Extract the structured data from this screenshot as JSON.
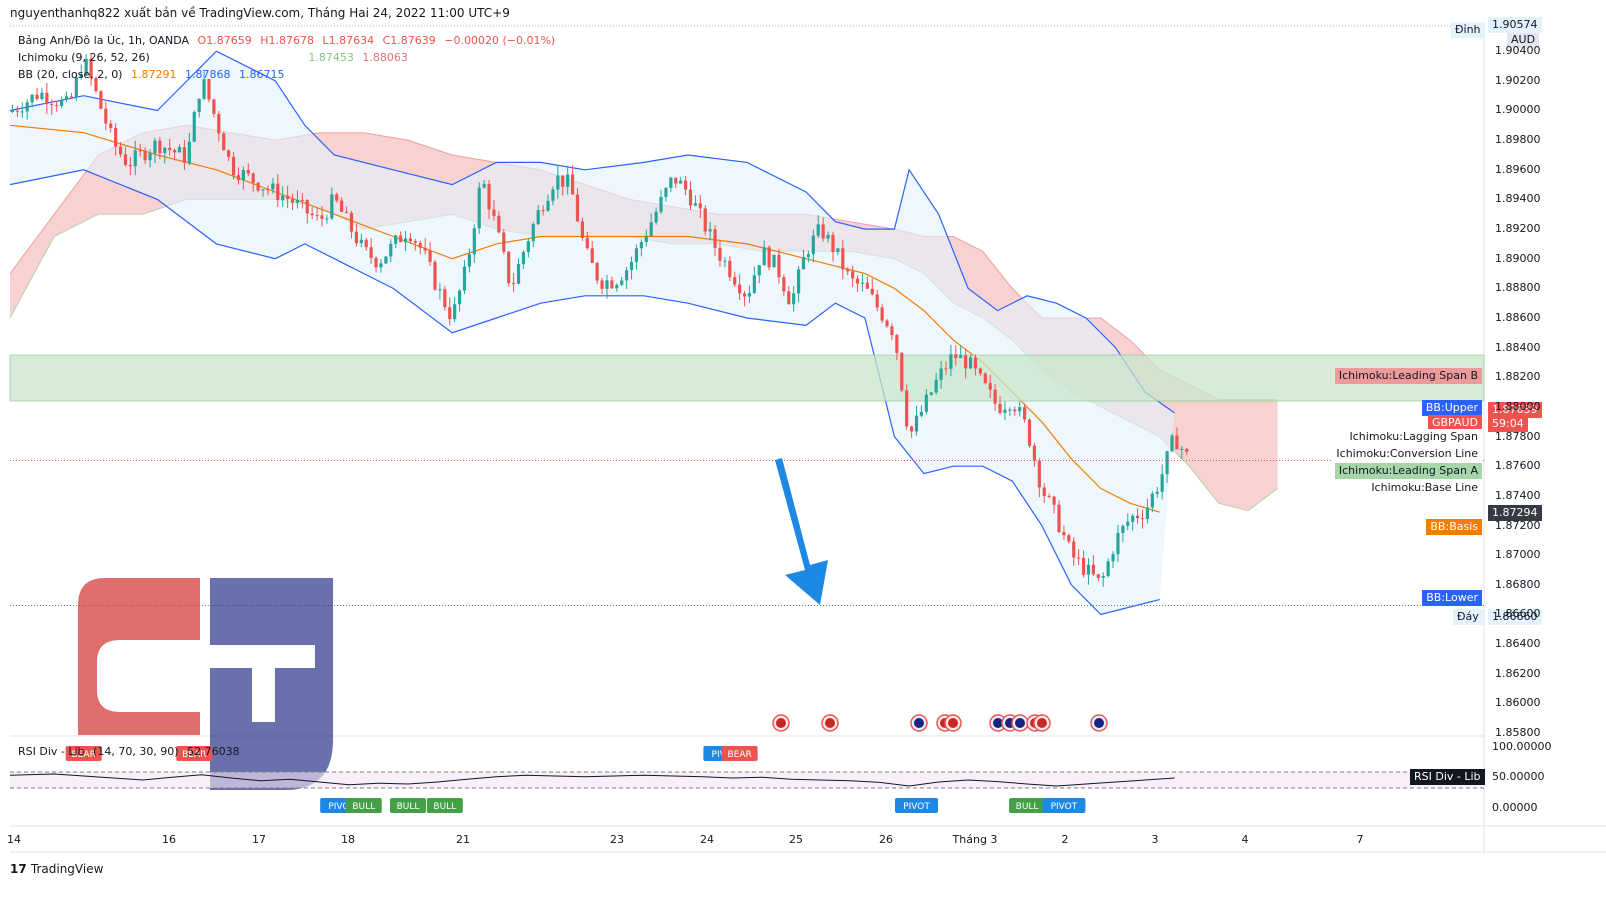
{
  "header": {
    "attribution": "nguyenthanhq822 xuất bản về TradingView.com, Tháng Hai 24, 2022 11:00 UTC+9"
  },
  "legend": {
    "symbol": "Bảng Anh/Đô la Úc, 1h, OANDA",
    "o": "O1.87659",
    "h": "H1.87678",
    "l": "L1.87634",
    "c": "C1.87639",
    "chg": "−0.00020 (−0.01%)",
    "ichimoku": "Ichimoku (9, 26, 52, 26)",
    "ichi_a": "1.87453",
    "ichi_b": "1.88063",
    "bb": "BB (20, close, 2, 0)",
    "bb_basis": "1.87291",
    "bb_upper": "1.87868",
    "bb_lower": "1.86715"
  },
  "price_axis": {
    "currency": "AUD",
    "top_label": "Đỉnh",
    "bottom_label": "Đáy",
    "top_value": "1.90574",
    "bottom_value": "1.86660",
    "last_price": "1.87639",
    "countdown": "59:04",
    "basis_value": "1.87294",
    "ticks": [
      "1.90400",
      "1.90200",
      "1.90000",
      "1.89800",
      "1.89600",
      "1.89400",
      "1.89200",
      "1.89000",
      "1.88800",
      "1.88600",
      "1.88400",
      "1.88200",
      "1.88000",
      "1.87800",
      "1.87600",
      "1.87400",
      "1.87200",
      "1.87000",
      "1.86800",
      "1.86600",
      "1.86400",
      "1.86200",
      "1.86000",
      "1.85800"
    ],
    "tick_values": [
      1.904,
      1.902,
      1.9,
      1.898,
      1.896,
      1.894,
      1.892,
      1.89,
      1.888,
      1.886,
      1.884,
      1.882,
      1.88,
      1.878,
      1.876,
      1.874,
      1.872,
      1.87,
      1.868,
      1.866,
      1.864,
      1.862,
      1.86,
      1.858
    ]
  },
  "series_labels": [
    {
      "text": "Ichimoku:Leading Span B",
      "bg": "#ef9a9a",
      "fg": "#131722",
      "y": 1.8821
    },
    {
      "text": "BB:Upper",
      "bg": "#2962ff",
      "fg": "#ffffff",
      "y": 1.8799
    },
    {
      "text": "GBPAUD",
      "bg": "#ef5350",
      "fg": "#ffffff",
      "y": 1.8789
    },
    {
      "text": "Ichimoku:Lagging Span",
      "bg": "#ffffff",
      "fg": "#131722",
      "y": 1.878
    },
    {
      "text": "Ichimoku:Conversion Line",
      "bg": "#ffffff",
      "fg": "#131722",
      "y": 1.8768
    },
    {
      "text": "Ichimoku:Leading Span A",
      "bg": "#a5d6a7",
      "fg": "#131722",
      "y": 1.8757
    },
    {
      "text": "Ichimoku:Base Line",
      "bg": "#ffffff",
      "fg": "#131722",
      "y": 1.8745
    },
    {
      "text": "BB:Basis",
      "bg": "#f57c00",
      "fg": "#ffffff",
      "y": 1.8719
    },
    {
      "text": "BB:Lower",
      "bg": "#2962ff",
      "fg": "#ffffff",
      "y": 1.8671
    }
  ],
  "rsi": {
    "label": "RSI Div - Lib",
    "params": "(14, 70, 30, 90)",
    "value": "52.76038",
    "ticks": [
      "100.00000",
      "50.00000",
      "0.00000"
    ]
  },
  "rsi_markers": [
    {
      "text": "BEAR",
      "kind": "bear",
      "x": 0.05
    },
    {
      "text": "BEAR",
      "kind": "bear",
      "x": 0.125
    },
    {
      "text": "PIVOT",
      "kind": "pivot",
      "x": 0.485
    },
    {
      "text": "BEAR",
      "kind": "bear",
      "x": 0.495
    },
    {
      "text": "PIVOT",
      "kind": "pivotlow",
      "x": 0.225
    },
    {
      "text": "BULL",
      "kind": "bull",
      "x": 0.24
    },
    {
      "text": "BULL",
      "kind": "bull",
      "x": 0.27
    },
    {
      "text": "BULL",
      "kind": "bull",
      "x": 0.295
    },
    {
      "text": "PIVOT",
      "kind": "pivotlow",
      "x": 0.615
    },
    {
      "text": "BULL",
      "kind": "bull",
      "x": 0.69
    },
    {
      "text": "PIVOT",
      "kind": "pivotlow",
      "x": 0.715
    }
  ],
  "x_axis": {
    "labels": [
      {
        "t": "14",
        "x": 14
      },
      {
        "t": "16",
        "x": 169
      },
      {
        "t": "17",
        "x": 259
      },
      {
        "t": "18",
        "x": 348
      },
      {
        "t": "21",
        "x": 463
      },
      {
        "t": "23",
        "x": 617
      },
      {
        "t": "24",
        "x": 707
      },
      {
        "t": "25",
        "x": 796
      },
      {
        "t": "26",
        "x": 886
      },
      {
        "t": "Tháng 3",
        "x": 975
      },
      {
        "t": "2",
        "x": 1065
      },
      {
        "t": "3",
        "x": 1155
      },
      {
        "t": "4",
        "x": 1245
      },
      {
        "t": "7",
        "x": 1360
      }
    ]
  },
  "events": [
    {
      "flag": "uk",
      "x": 781
    },
    {
      "flag": "uk",
      "x": 830
    },
    {
      "flag": "au",
      "x": 919
    },
    {
      "flag": "uk",
      "x": 945
    },
    {
      "flag": "uk",
      "x": 953
    },
    {
      "flag": "au",
      "x": 998
    },
    {
      "flag": "au",
      "x": 1010
    },
    {
      "flag": "au",
      "x": 1020
    },
    {
      "flag": "uk",
      "x": 1035
    },
    {
      "flag": "uk",
      "x": 1042
    },
    {
      "flag": "au",
      "x": 1099
    }
  ],
  "colors": {
    "up": "#26a69a",
    "down": "#ef5350",
    "bb": "#2962ff",
    "basis": "#f57c00",
    "kumo_bull": "#a5d6a7",
    "kumo_bear": "#ef9a9a",
    "zone": "#c8e6c9",
    "arrow": "#1e88e5",
    "logo_red": "#d32f2f",
    "logo_blue": "#1a237e"
  },
  "chart_data": {
    "type": "candlestick",
    "symbol": "GBPAUD",
    "timeframe": "1h",
    "ylim": [
      1.8578,
      1.9057
    ],
    "supply_zone": [
      1.8804,
      1.8835
    ],
    "last": {
      "o": 1.87659,
      "h": 1.87678,
      "l": 1.87634,
      "c": 1.87639
    },
    "close_path": [
      [
        0,
        1.8999
      ],
      [
        0.02,
        1.9012
      ],
      [
        0.04,
        1.9003
      ],
      [
        0.05,
        1.9035
      ],
      [
        0.07,
        1.8978
      ],
      [
        0.08,
        1.8964
      ],
      [
        0.1,
        1.8978
      ],
      [
        0.12,
        1.8968
      ],
      [
        0.13,
        1.9022
      ],
      [
        0.14,
        1.8993
      ],
      [
        0.15,
        1.8962
      ],
      [
        0.17,
        1.895
      ],
      [
        0.19,
        1.894
      ],
      [
        0.21,
        1.8925
      ],
      [
        0.22,
        1.894
      ],
      [
        0.24,
        1.8905
      ],
      [
        0.25,
        1.8898
      ],
      [
        0.27,
        1.892
      ],
      [
        0.28,
        1.8905
      ],
      [
        0.29,
        1.888
      ],
      [
        0.3,
        1.886
      ],
      [
        0.31,
        1.8895
      ],
      [
        0.32,
        1.8955
      ],
      [
        0.33,
        1.892
      ],
      [
        0.34,
        1.888
      ],
      [
        0.35,
        1.891
      ],
      [
        0.36,
        1.8935
      ],
      [
        0.37,
        1.8955
      ],
      [
        0.38,
        1.895
      ],
      [
        0.39,
        1.8905
      ],
      [
        0.4,
        1.8885
      ],
      [
        0.41,
        1.8885
      ],
      [
        0.42,
        1.8895
      ],
      [
        0.43,
        1.8915
      ],
      [
        0.44,
        1.8935
      ],
      [
        0.45,
        1.8955
      ],
      [
        0.46,
        1.8945
      ],
      [
        0.47,
        1.8925
      ],
      [
        0.48,
        1.8905
      ],
      [
        0.49,
        1.889
      ],
      [
        0.5,
        1.8875
      ],
      [
        0.51,
        1.8905
      ],
      [
        0.52,
        1.8895
      ],
      [
        0.53,
        1.887
      ],
      [
        0.54,
        1.8905
      ],
      [
        0.55,
        1.892
      ],
      [
        0.56,
        1.8905
      ],
      [
        0.57,
        1.8885
      ],
      [
        0.58,
        1.888
      ],
      [
        0.59,
        1.8865
      ],
      [
        0.6,
        1.885
      ],
      [
        0.61,
        1.878
      ],
      [
        0.62,
        1.88
      ],
      [
        0.63,
        1.882
      ],
      [
        0.64,
        1.8835
      ],
      [
        0.65,
        1.883
      ],
      [
        0.66,
        1.8815
      ],
      [
        0.67,
        1.88
      ],
      [
        0.68,
        1.8805
      ],
      [
        0.69,
        1.8785
      ],
      [
        0.7,
        1.8745
      ],
      [
        0.71,
        1.8725
      ],
      [
        0.72,
        1.87
      ],
      [
        0.73,
        1.869
      ],
      [
        0.74,
        1.868
      ],
      [
        0.75,
        1.871
      ],
      [
        0.76,
        1.8725
      ],
      [
        0.77,
        1.873
      ],
      [
        0.78,
        1.875
      ],
      [
        0.79,
        1.878
      ],
      [
        0.8,
        1.8764
      ]
    ],
    "bb_upper": [
      [
        0,
        1.9
      ],
      [
        0.05,
        1.901
      ],
      [
        0.1,
        1.9
      ],
      [
        0.14,
        1.904
      ],
      [
        0.18,
        1.902
      ],
      [
        0.2,
        1.899
      ],
      [
        0.22,
        1.897
      ],
      [
        0.26,
        1.896
      ],
      [
        0.3,
        1.895
      ],
      [
        0.33,
        1.8965
      ],
      [
        0.36,
        1.8965
      ],
      [
        0.39,
        1.896
      ],
      [
        0.43,
        1.8965
      ],
      [
        0.46,
        1.897
      ],
      [
        0.5,
        1.8965
      ],
      [
        0.54,
        1.8945
      ],
      [
        0.56,
        1.8925
      ],
      [
        0.58,
        1.892
      ],
      [
        0.6,
        1.892
      ],
      [
        0.61,
        1.896
      ],
      [
        0.63,
        1.893
      ],
      [
        0.65,
        1.888
      ],
      [
        0.67,
        1.8865
      ],
      [
        0.69,
        1.8875
      ],
      [
        0.71,
        1.887
      ],
      [
        0.73,
        1.886
      ],
      [
        0.75,
        1.884
      ],
      [
        0.77,
        1.881
      ],
      [
        0.79,
        1.8796
      ]
    ],
    "bb_lower": [
      [
        0,
        1.895
      ],
      [
        0.05,
        1.896
      ],
      [
        0.1,
        1.894
      ],
      [
        0.14,
        1.891
      ],
      [
        0.18,
        1.89
      ],
      [
        0.2,
        1.891
      ],
      [
        0.22,
        1.89
      ],
      [
        0.26,
        1.888
      ],
      [
        0.3,
        1.885
      ],
      [
        0.33,
        1.886
      ],
      [
        0.36,
        1.887
      ],
      [
        0.39,
        1.8875
      ],
      [
        0.43,
        1.8875
      ],
      [
        0.46,
        1.887
      ],
      [
        0.5,
        1.886
      ],
      [
        0.54,
        1.8855
      ],
      [
        0.56,
        1.887
      ],
      [
        0.58,
        1.886
      ],
      [
        0.6,
        1.878
      ],
      [
        0.62,
        1.8755
      ],
      [
        0.64,
        1.876
      ],
      [
        0.66,
        1.876
      ],
      [
        0.68,
        1.875
      ],
      [
        0.7,
        1.872
      ],
      [
        0.72,
        1.868
      ],
      [
        0.74,
        1.866
      ],
      [
        0.76,
        1.8665
      ],
      [
        0.78,
        1.867
      ]
    ],
    "bb_basis": [
      [
        0,
        1.899
      ],
      [
        0.05,
        1.8985
      ],
      [
        0.1,
        1.897
      ],
      [
        0.14,
        1.896
      ],
      [
        0.18,
        1.8945
      ],
      [
        0.22,
        1.893
      ],
      [
        0.26,
        1.8915
      ],
      [
        0.3,
        1.89
      ],
      [
        0.33,
        1.891
      ],
      [
        0.36,
        1.8915
      ],
      [
        0.39,
        1.8915
      ],
      [
        0.43,
        1.8915
      ],
      [
        0.46,
        1.8915
      ],
      [
        0.5,
        1.891
      ],
      [
        0.54,
        1.89
      ],
      [
        0.56,
        1.8895
      ],
      [
        0.58,
        1.889
      ],
      [
        0.6,
        1.888
      ],
      [
        0.62,
        1.8865
      ],
      [
        0.64,
        1.8845
      ],
      [
        0.66,
        1.883
      ],
      [
        0.68,
        1.881
      ],
      [
        0.7,
        1.879
      ],
      [
        0.72,
        1.8765
      ],
      [
        0.74,
        1.8745
      ],
      [
        0.76,
        1.8735
      ],
      [
        0.78,
        1.8729
      ]
    ],
    "kumo_a": [
      [
        0,
        1.886
      ],
      [
        0.03,
        1.8915
      ],
      [
        0.06,
        1.893
      ],
      [
        0.09,
        1.893
      ],
      [
        0.12,
        1.894
      ],
      [
        0.15,
        1.894
      ],
      [
        0.18,
        1.894
      ],
      [
        0.21,
        1.8935
      ],
      [
        0.24,
        1.892
      ],
      [
        0.27,
        1.8925
      ],
      [
        0.3,
        1.893
      ],
      [
        0.33,
        1.892
      ],
      [
        0.36,
        1.8915
      ],
      [
        0.39,
        1.8915
      ],
      [
        0.42,
        1.8915
      ],
      [
        0.45,
        1.891
      ],
      [
        0.48,
        1.891
      ],
      [
        0.51,
        1.8905
      ],
      [
        0.54,
        1.8905
      ],
      [
        0.57,
        1.8905
      ],
      [
        0.6,
        1.89
      ],
      [
        0.62,
        1.889
      ],
      [
        0.64,
        1.887
      ],
      [
        0.66,
        1.886
      ],
      [
        0.68,
        1.8845
      ],
      [
        0.7,
        1.8825
      ],
      [
        0.72,
        1.881
      ],
      [
        0.74,
        1.88
      ],
      [
        0.76,
        1.879
      ],
      [
        0.78,
        1.878
      ],
      [
        0.8,
        1.876
      ],
      [
        0.82,
        1.8735
      ],
      [
        0.84,
        1.873
      ],
      [
        0.86,
        1.8745
      ]
    ],
    "kumo_b": [
      [
        0,
        1.889
      ],
      [
        0.03,
        1.893
      ],
      [
        0.06,
        1.897
      ],
      [
        0.09,
        1.8985
      ],
      [
        0.12,
        1.899
      ],
      [
        0.15,
        1.8985
      ],
      [
        0.18,
        1.898
      ],
      [
        0.21,
        1.8985
      ],
      [
        0.24,
        1.8985
      ],
      [
        0.27,
        1.898
      ],
      [
        0.3,
        1.897
      ],
      [
        0.33,
        1.8965
      ],
      [
        0.36,
        1.896
      ],
      [
        0.39,
        1.895
      ],
      [
        0.42,
        1.894
      ],
      [
        0.45,
        1.8935
      ],
      [
        0.48,
        1.893
      ],
      [
        0.51,
        1.893
      ],
      [
        0.54,
        1.893
      ],
      [
        0.57,
        1.8925
      ],
      [
        0.6,
        1.892
      ],
      [
        0.62,
        1.8915
      ],
      [
        0.64,
        1.8915
      ],
      [
        0.66,
        1.8905
      ],
      [
        0.68,
        1.888
      ],
      [
        0.7,
        1.886
      ],
      [
        0.72,
        1.886
      ],
      [
        0.74,
        1.886
      ],
      [
        0.76,
        1.8845
      ],
      [
        0.78,
        1.8825
      ],
      [
        0.8,
        1.8815
      ],
      [
        0.82,
        1.8805
      ],
      [
        0.84,
        1.8805
      ],
      [
        0.86,
        1.8805
      ]
    ],
    "rsi_values": [
      [
        0,
        62
      ],
      [
        0.03,
        65
      ],
      [
        0.05,
        60
      ],
      [
        0.07,
        55
      ],
      [
        0.09,
        50
      ],
      [
        0.11,
        57
      ],
      [
        0.13,
        63
      ],
      [
        0.15,
        55
      ],
      [
        0.17,
        48
      ],
      [
        0.19,
        52
      ],
      [
        0.21,
        45
      ],
      [
        0.23,
        38
      ],
      [
        0.25,
        42
      ],
      [
        0.27,
        40
      ],
      [
        0.29,
        45
      ],
      [
        0.31,
        52
      ],
      [
        0.33,
        58
      ],
      [
        0.35,
        62
      ],
      [
        0.37,
        60
      ],
      [
        0.39,
        58
      ],
      [
        0.41,
        60
      ],
      [
        0.43,
        62
      ],
      [
        0.45,
        60
      ],
      [
        0.47,
        58
      ],
      [
        0.49,
        55
      ],
      [
        0.51,
        57
      ],
      [
        0.53,
        52
      ],
      [
        0.55,
        50
      ],
      [
        0.57,
        48
      ],
      [
        0.59,
        44
      ],
      [
        0.61,
        35
      ],
      [
        0.63,
        45
      ],
      [
        0.65,
        50
      ],
      [
        0.67,
        46
      ],
      [
        0.69,
        40
      ],
      [
        0.71,
        35
      ],
      [
        0.73,
        40
      ],
      [
        0.75,
        45
      ],
      [
        0.77,
        50
      ],
      [
        0.79,
        55
      ]
    ]
  }
}
